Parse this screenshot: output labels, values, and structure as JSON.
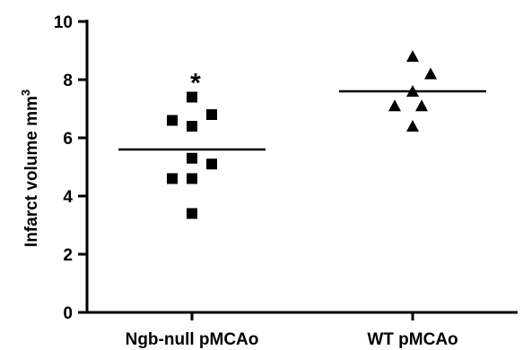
{
  "chart_data": {
    "type": "scatter",
    "ylabel": "Infarct volume mm",
    "ylabel_superscript": "3",
    "ylim": [
      0,
      10
    ],
    "yticks": [
      "0",
      "2",
      "4",
      "6",
      "8",
      "10"
    ],
    "categories": [
      "Ngb-null pMCAo",
      "WT pMCAo"
    ],
    "series": [
      {
        "category": "Ngb-null pMCAo",
        "marker": "square",
        "values": [
          7.4,
          6.6,
          6.8,
          6.4,
          5.3,
          5.1,
          4.6,
          4.6,
          3.4
        ],
        "mean": 5.6,
        "annotation": "*"
      },
      {
        "category": "WT pMCAo",
        "marker": "triangle",
        "values": [
          8.8,
          8.2,
          7.6,
          7.1,
          7.1,
          6.4
        ],
        "mean": 7.6
      }
    ],
    "grid": false,
    "legend": "none"
  }
}
